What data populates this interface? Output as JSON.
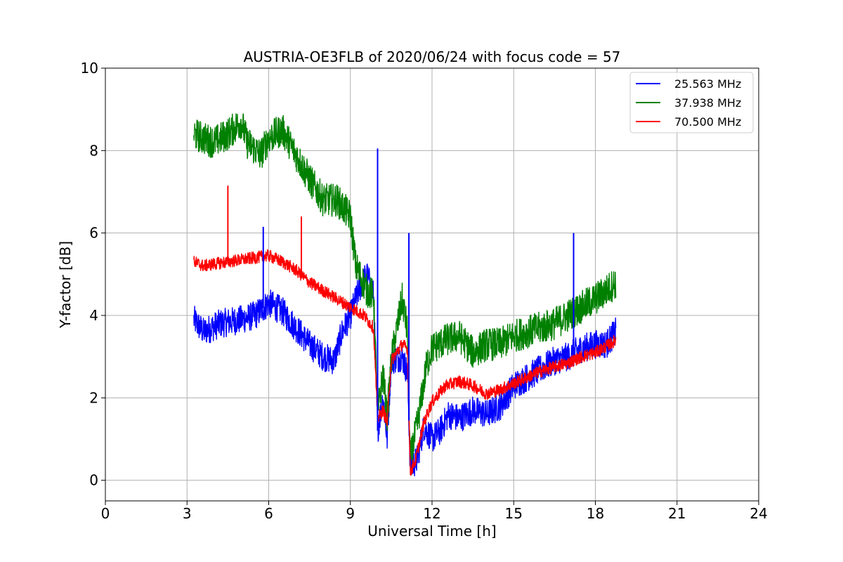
{
  "chart_data": {
    "type": "line",
    "title": "AUSTRIA-OE3FLB of 2020/06/24 with focus code = 57",
    "xlabel": "Universal Time [h]",
    "ylabel": "Y-factor [dB]",
    "xlim": [
      0,
      24
    ],
    "ylim": [
      -0.5,
      10
    ],
    "xticks": [
      0,
      3,
      6,
      9,
      12,
      15,
      18,
      21,
      24
    ],
    "yticks": [
      0,
      2,
      4,
      6,
      8,
      10
    ],
    "grid": true,
    "legend_position": "top-right",
    "series": [
      {
        "name": "25.563 MHz",
        "color": "#0000ff",
        "noise": 0.35,
        "points": [
          [
            3.25,
            3.9
          ],
          [
            3.6,
            3.6
          ],
          [
            4.2,
            3.8
          ],
          [
            5.0,
            3.9
          ],
          [
            5.5,
            4.0
          ],
          [
            6.0,
            4.3
          ],
          [
            6.5,
            4.1
          ],
          [
            7.0,
            3.7
          ],
          [
            7.5,
            3.3
          ],
          [
            8.0,
            3.0
          ],
          [
            8.4,
            2.9
          ],
          [
            8.7,
            3.6
          ],
          [
            9.0,
            4.0
          ],
          [
            9.3,
            4.6
          ],
          [
            9.6,
            5.0
          ],
          [
            9.85,
            4.5
          ],
          [
            10.0,
            1.2
          ],
          [
            10.2,
            2.0
          ],
          [
            10.35,
            1.0
          ],
          [
            10.5,
            2.9
          ],
          [
            10.9,
            3.0
          ],
          [
            11.1,
            2.6
          ],
          [
            11.2,
            0.3
          ],
          [
            11.45,
            0.5
          ],
          [
            11.7,
            1.3
          ],
          [
            12.0,
            1.0
          ],
          [
            12.3,
            1.2
          ],
          [
            12.6,
            1.6
          ],
          [
            13.0,
            1.5
          ],
          [
            13.5,
            1.7
          ],
          [
            14.0,
            1.6
          ],
          [
            14.5,
            1.8
          ],
          [
            15.0,
            2.3
          ],
          [
            15.5,
            2.5
          ],
          [
            16.0,
            2.7
          ],
          [
            16.5,
            2.9
          ],
          [
            17.0,
            3.0
          ],
          [
            17.5,
            3.2
          ],
          [
            18.0,
            3.3
          ],
          [
            18.4,
            3.3
          ],
          [
            18.75,
            3.6
          ]
        ]
      },
      {
        "name": "37.938 MHz",
        "color": "#008000",
        "noise": 0.4,
        "points": [
          [
            3.25,
            8.4
          ],
          [
            3.6,
            8.3
          ],
          [
            4.0,
            8.2
          ],
          [
            4.5,
            8.4
          ],
          [
            5.0,
            8.7
          ],
          [
            5.2,
            8.2
          ],
          [
            5.7,
            7.9
          ],
          [
            6.0,
            8.3
          ],
          [
            6.5,
            8.5
          ],
          [
            7.0,
            7.9
          ],
          [
            7.5,
            7.3
          ],
          [
            8.0,
            6.8
          ],
          [
            8.5,
            6.8
          ],
          [
            9.0,
            6.4
          ],
          [
            9.2,
            5.2
          ],
          [
            9.6,
            4.6
          ],
          [
            9.85,
            4.5
          ],
          [
            10.0,
            1.6
          ],
          [
            10.2,
            2.6
          ],
          [
            10.35,
            1.5
          ],
          [
            10.5,
            2.9
          ],
          [
            10.9,
            4.4
          ],
          [
            11.1,
            3.6
          ],
          [
            11.2,
            0.5
          ],
          [
            11.5,
            1.5
          ],
          [
            11.8,
            2.8
          ],
          [
            12.0,
            3.2
          ],
          [
            12.5,
            3.4
          ],
          [
            13.0,
            3.5
          ],
          [
            13.5,
            3.1
          ],
          [
            14.0,
            3.3
          ],
          [
            14.5,
            3.3
          ],
          [
            15.0,
            3.5
          ],
          [
            15.5,
            3.6
          ],
          [
            16.0,
            3.7
          ],
          [
            16.5,
            3.8
          ],
          [
            17.0,
            4.0
          ],
          [
            17.5,
            4.2
          ],
          [
            18.0,
            4.4
          ],
          [
            18.4,
            4.6
          ],
          [
            18.75,
            4.8
          ]
        ]
      },
      {
        "name": "70.500 MHz",
        "color": "#ff0000",
        "noise": 0.15,
        "points": [
          [
            3.25,
            5.3
          ],
          [
            3.6,
            5.2
          ],
          [
            4.0,
            5.25
          ],
          [
            4.5,
            5.3
          ],
          [
            5.0,
            5.35
          ],
          [
            5.5,
            5.4
          ],
          [
            6.0,
            5.45
          ],
          [
            6.5,
            5.3
          ],
          [
            7.0,
            5.1
          ],
          [
            7.5,
            4.8
          ],
          [
            8.0,
            4.6
          ],
          [
            8.5,
            4.4
          ],
          [
            9.0,
            4.2
          ],
          [
            9.5,
            4.0
          ],
          [
            9.85,
            3.7
          ],
          [
            10.0,
            1.5
          ],
          [
            10.2,
            1.7
          ],
          [
            10.35,
            1.4
          ],
          [
            10.5,
            2.9
          ],
          [
            10.9,
            3.3
          ],
          [
            11.1,
            3.2
          ],
          [
            11.2,
            0.2
          ],
          [
            11.4,
            0.5
          ],
          [
            11.7,
            1.4
          ],
          [
            12.0,
            1.9
          ],
          [
            12.5,
            2.3
          ],
          [
            13.0,
            2.4
          ],
          [
            13.5,
            2.3
          ],
          [
            14.0,
            2.1
          ],
          [
            14.5,
            2.2
          ],
          [
            15.0,
            2.35
          ],
          [
            15.5,
            2.5
          ],
          [
            16.0,
            2.65
          ],
          [
            16.5,
            2.75
          ],
          [
            17.0,
            2.85
          ],
          [
            17.5,
            3.0
          ],
          [
            18.0,
            3.1
          ],
          [
            18.4,
            3.25
          ],
          [
            18.75,
            3.4
          ]
        ]
      }
    ],
    "spikes": [
      {
        "series": 2,
        "x": 4.5,
        "y": 7.15
      },
      {
        "series": 2,
        "x": 7.2,
        "y": 6.4
      },
      {
        "series": 0,
        "x": 10.0,
        "y": 8.05
      },
      {
        "series": 0,
        "x": 17.2,
        "y": 6.0
      },
      {
        "series": 0,
        "x": 5.8,
        "y": 6.15
      },
      {
        "series": 0,
        "x": 11.15,
        "y": 6.0
      }
    ]
  }
}
